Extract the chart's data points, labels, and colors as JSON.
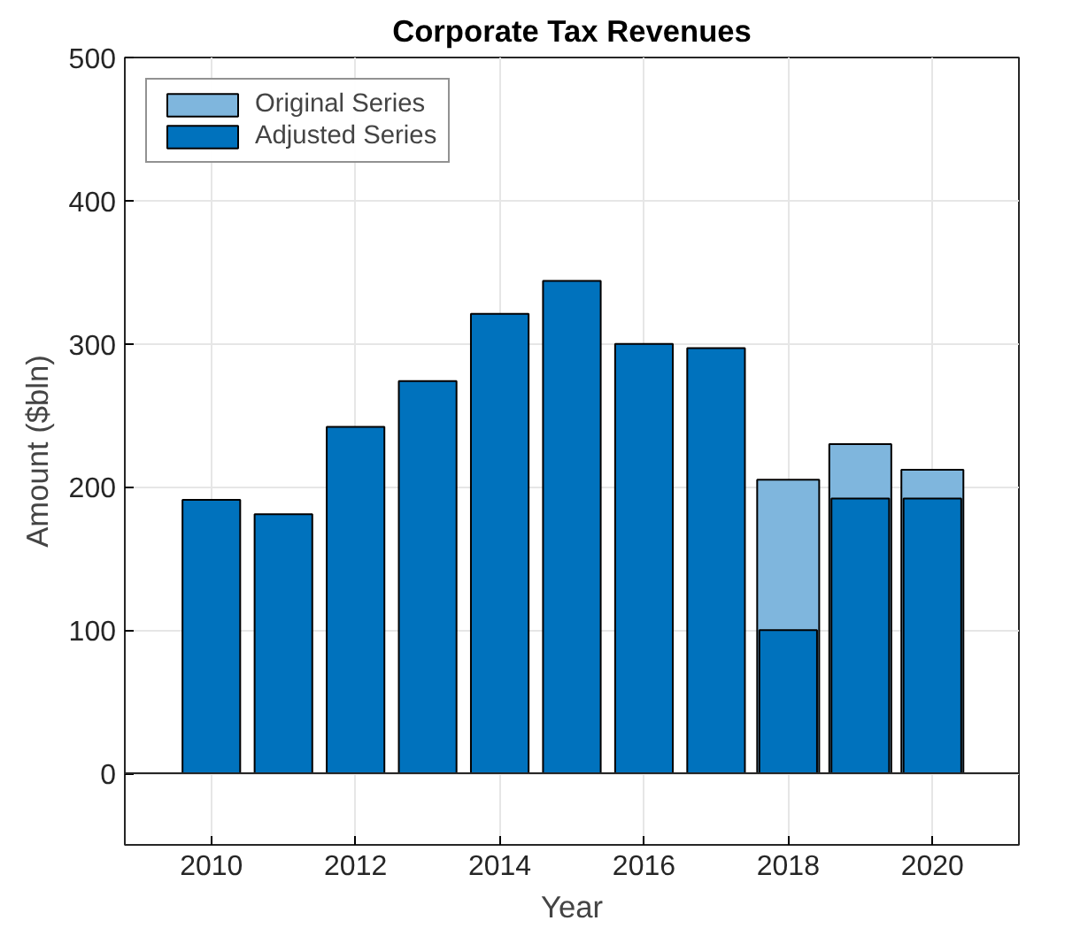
{
  "chart_data": {
    "type": "bar",
    "title": "Corporate Tax Revenues",
    "xlabel": "Year",
    "ylabel": "Amount ($bln)",
    "x": [
      2010,
      2011,
      2012,
      2013,
      2014,
      2015,
      2016,
      2017,
      2018,
      2019,
      2020
    ],
    "series": [
      {
        "name": "Original Series",
        "color": "#7fb6dd",
        "values": [
          null,
          null,
          null,
          null,
          null,
          null,
          null,
          null,
          205,
          230,
          212
        ]
      },
      {
        "name": "Adjusted Series",
        "color": "#0072bd",
        "values": [
          191,
          181,
          242,
          274,
          321,
          344,
          300,
          297,
          100,
          192,
          192
        ]
      }
    ],
    "xlim": [
      2008.8,
      2021.2
    ],
    "xticks": [
      2010,
      2012,
      2014,
      2016,
      2018,
      2020
    ],
    "ylim": [
      -50,
      500
    ],
    "yticks": [
      0,
      100,
      200,
      300,
      400,
      500
    ],
    "grid": true,
    "legend": "top left"
  }
}
